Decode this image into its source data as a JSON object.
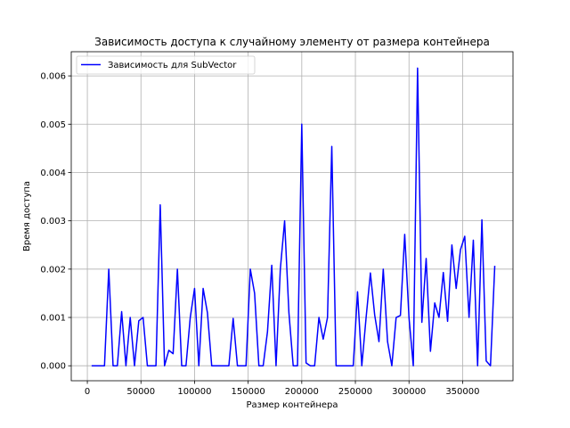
{
  "chart_data": {
    "type": "line",
    "title": "Зависимость доступа к случайному элементу от размера контейнера",
    "xlabel": "Размер контейнера",
    "ylabel": "Время доступа",
    "xlim": [
      -15000,
      397000
    ],
    "ylim": [
      -0.00031,
      0.0065
    ],
    "xticks": [
      0,
      50000,
      100000,
      150000,
      200000,
      250000,
      300000,
      350000
    ],
    "xtick_labels": [
      "0",
      "50000",
      "100000",
      "150000",
      "200000",
      "250000",
      "300000",
      "350000"
    ],
    "yticks": [
      0,
      0.001,
      0.002,
      0.003,
      0.004,
      0.005,
      0.006
    ],
    "ytick_labels": [
      "0.000",
      "0.001",
      "0.002",
      "0.003",
      "0.004",
      "0.005",
      "0.006"
    ],
    "grid": true,
    "legend_position": "upper-left",
    "series": [
      {
        "name": "Зависимость для SubVector",
        "color": "#0000ff",
        "x": [
          4000,
          8000,
          12000,
          16000,
          20000,
          24000,
          28000,
          32000,
          36000,
          40000,
          44000,
          48000,
          52000,
          56000,
          60000,
          64000,
          68000,
          72000,
          76000,
          80000,
          84000,
          88000,
          92000,
          96000,
          100000,
          104000,
          108000,
          112000,
          116000,
          120000,
          124000,
          128000,
          132000,
          136000,
          140000,
          144000,
          148000,
          152000,
          156000,
          160000,
          164000,
          168000,
          172000,
          176000,
          180000,
          184000,
          188000,
          192000,
          196000,
          200000,
          204000,
          208000,
          212000,
          216000,
          220000,
          224000,
          228000,
          232000,
          236000,
          240000,
          244000,
          248000,
          252000,
          256000,
          260000,
          264000,
          268000,
          272000,
          276000,
          280000,
          284000,
          288000,
          292000,
          296000,
          300000,
          304000,
          308000,
          312000,
          316000,
          320000,
          324000,
          328000,
          332000,
          336000,
          340000,
          344000,
          348000,
          352000,
          356000,
          360000,
          364000,
          368000,
          372000,
          376000,
          380000
        ],
        "y": [
          0,
          0,
          0,
          0,
          0.002,
          0,
          0,
          0.00112,
          0,
          0.001,
          0,
          0.00093,
          0.001,
          0,
          0,
          0,
          0.00333,
          0,
          0.00032,
          0.00025,
          0.002,
          0,
          0,
          0.001,
          0.0016,
          0,
          0.0016,
          0.0011,
          0,
          0,
          0,
          0,
          0,
          0.00098,
          0,
          0,
          0,
          0.002,
          0.0015,
          0,
          0,
          0.0007,
          0.00208,
          0,
          0.002,
          0.003,
          0.0011,
          0,
          0,
          0.005,
          6e-05,
          0,
          0,
          0.001,
          0.00055,
          0.001,
          0.00454,
          0,
          0,
          0,
          0,
          0,
          0.00153,
          0,
          0.001,
          0.00192,
          0.00105,
          0.0005,
          0.002,
          0.0005,
          0,
          0.001,
          0.00104,
          0.00272,
          0.001,
          0,
          0.00616,
          0.0009,
          0.00222,
          0.0003,
          0.0013,
          0.001,
          0.00193,
          0.00092,
          0.0025,
          0.0016,
          0.0024,
          0.00268,
          0.001,
          0.0026,
          0,
          0.00302,
          0.0001,
          0,
          0.00207
        ]
      }
    ]
  }
}
